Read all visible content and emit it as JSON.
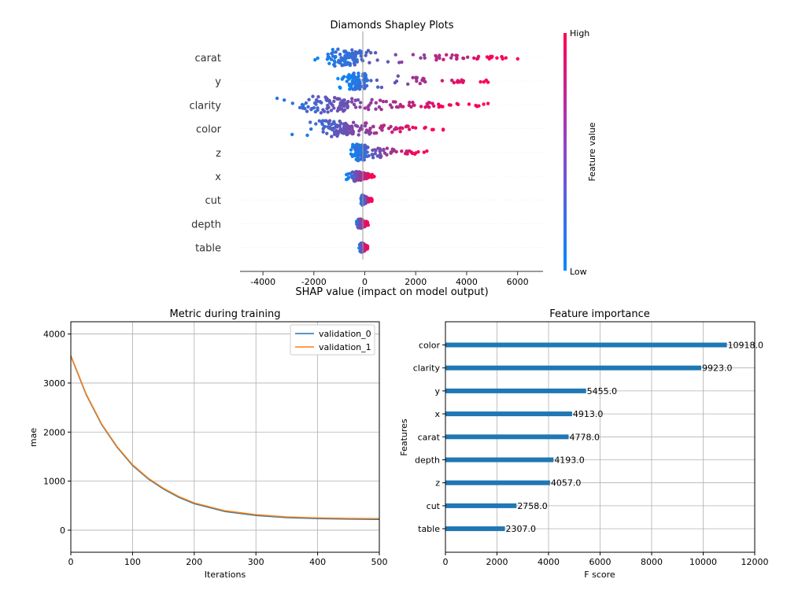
{
  "colors": {
    "shap_low": "#008bfb",
    "shap_high": "#ff0052",
    "series_validation_0": "#1f77b4",
    "series_validation_1": "#ff7f0e",
    "bar": "#1f77b4",
    "grid": "#b0b0b0"
  },
  "chart_data": [
    {
      "type": "scatter",
      "subtype": "shap-beeswarm",
      "title": "Diamonds Shapley Plots",
      "xlabel": "SHAP value (impact on model output)",
      "xlim": [
        -4900,
        7000
      ],
      "xticks": [
        -4000,
        -2000,
        0,
        2000,
        4000,
        6000
      ],
      "features": [
        "carat",
        "y",
        "clarity",
        "color",
        "z",
        "x",
        "cut",
        "depth",
        "table"
      ],
      "value_ranges": [
        {
          "feature": "carat",
          "min": -2300,
          "max": 6400
        },
        {
          "feature": "y",
          "min": -1200,
          "max": 5200
        },
        {
          "feature": "clarity",
          "min": -4300,
          "max": 4900
        },
        {
          "feature": "color",
          "min": -3100,
          "max": 3200
        },
        {
          "feature": "z",
          "min": -700,
          "max": 2500
        },
        {
          "feature": "x",
          "min": -750,
          "max": 400
        },
        {
          "feature": "cut",
          "min": -200,
          "max": 300
        },
        {
          "feature": "depth",
          "min": -400,
          "max": 150
        },
        {
          "feature": "table",
          "min": -250,
          "max": 120
        }
      ],
      "colorbar": {
        "label": "Feature value",
        "high": "High",
        "low": "Low"
      }
    },
    {
      "type": "line",
      "title": "Metric during training",
      "xlabel": "Iterations",
      "ylabel": "mae",
      "xlim": [
        0,
        500
      ],
      "ylim": [
        -450,
        4250
      ],
      "xticks": [
        0,
        100,
        200,
        300,
        400,
        500
      ],
      "yticks": [
        0,
        1000,
        2000,
        3000,
        4000
      ],
      "grid": true,
      "legend_position": "top-right",
      "x": [
        0,
        25,
        50,
        75,
        100,
        125,
        150,
        175,
        200,
        250,
        300,
        350,
        400,
        450,
        500
      ],
      "series": [
        {
          "name": "validation_0",
          "values": [
            3550,
            2760,
            2150,
            1690,
            1320,
            1050,
            840,
            670,
            540,
            380,
            300,
            255,
            235,
            225,
            220
          ]
        },
        {
          "name": "validation_1",
          "values": [
            3560,
            2775,
            2165,
            1705,
            1335,
            1065,
            855,
            685,
            555,
            395,
            315,
            270,
            250,
            240,
            235
          ]
        }
      ]
    },
    {
      "type": "bar",
      "orientation": "horizontal",
      "title": "Feature importance",
      "xlabel": "F score",
      "ylabel": "Features",
      "xlim": [
        0,
        12000
      ],
      "xticks": [
        0,
        2000,
        4000,
        6000,
        8000,
        10000,
        12000
      ],
      "grid": true,
      "categories": [
        "color",
        "clarity",
        "y",
        "x",
        "carat",
        "depth",
        "z",
        "cut",
        "table"
      ],
      "values": [
        10918.0,
        9923.0,
        5455.0,
        4913.0,
        4778.0,
        4193.0,
        4057.0,
        2758.0,
        2307.0
      ],
      "value_labels": [
        "10918.0",
        "9923.0",
        "5455.0",
        "4913.0",
        "4778.0",
        "4193.0",
        "4057.0",
        "2758.0",
        "2307.0"
      ]
    }
  ]
}
